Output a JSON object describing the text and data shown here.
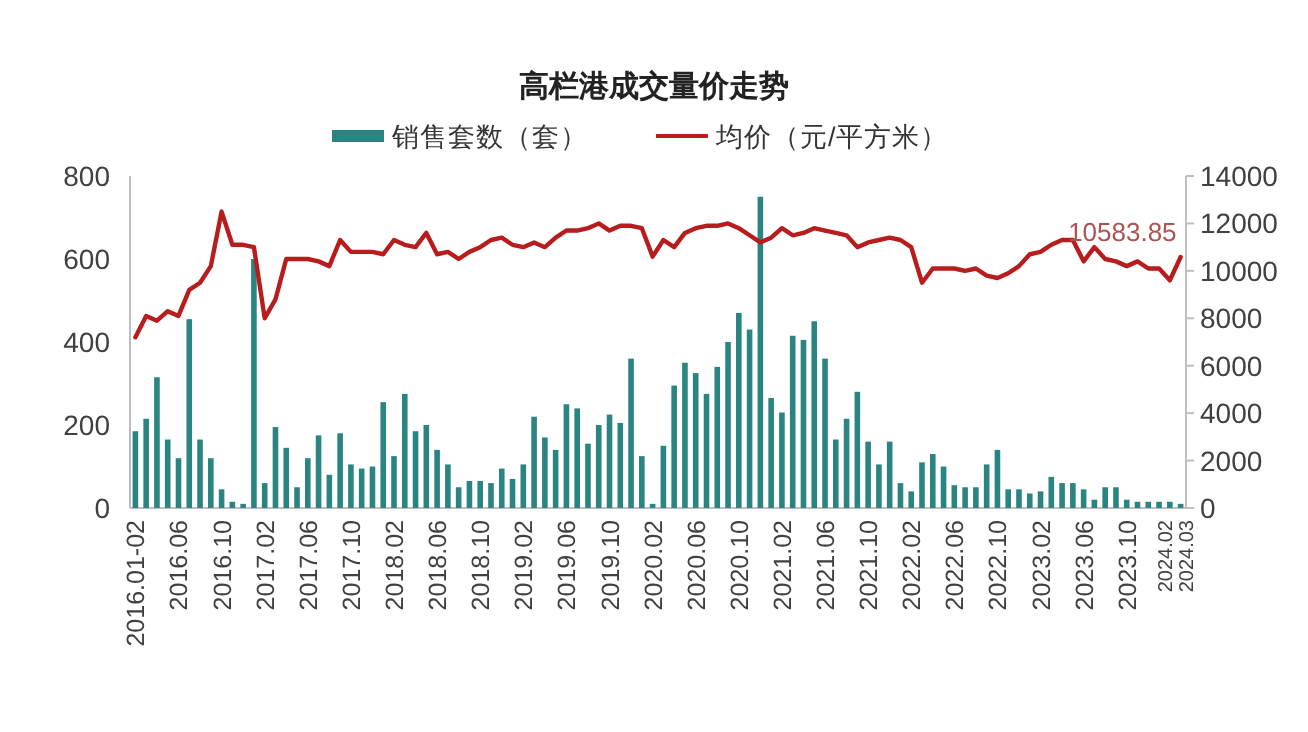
{
  "chart_data": {
    "type": "bar",
    "title": "高栏港成交量价走势",
    "categories": [
      "2016.01-02",
      null,
      null,
      null,
      "2016.06",
      null,
      null,
      null,
      "2016.10",
      null,
      null,
      null,
      "2017.02",
      null,
      null,
      null,
      "2017.06",
      null,
      null,
      null,
      "2017.10",
      null,
      null,
      null,
      "2018.02",
      null,
      null,
      null,
      "2018.06",
      null,
      null,
      null,
      "2018.10",
      null,
      null,
      null,
      "2019.02",
      null,
      null,
      null,
      "2019.06",
      null,
      null,
      null,
      "2019.10",
      null,
      null,
      null,
      "2020.02",
      null,
      null,
      null,
      "2020.06",
      null,
      null,
      null,
      "2020.10",
      null,
      null,
      null,
      "2021.02",
      null,
      null,
      null,
      "2021.06",
      null,
      null,
      null,
      "2021.10",
      null,
      null,
      null,
      "2022.02",
      null,
      null,
      null,
      "2022.06",
      null,
      null,
      null,
      "2022.10",
      null,
      null,
      null,
      "2023.02",
      null,
      null,
      null,
      "2023.06",
      null,
      null,
      null,
      "2023.10",
      null,
      null,
      null,
      "2024.02",
      "2024.03"
    ],
    "series": [
      {
        "name": "销售套数（套）",
        "color": "#2a8582",
        "values": [
          185,
          215,
          315,
          165,
          120,
          455,
          165,
          120,
          45,
          15,
          10,
          600,
          60,
          195,
          145,
          50,
          120,
          175,
          80,
          180,
          105,
          95,
          100,
          255,
          125,
          275,
          185,
          200,
          140,
          105,
          50,
          65,
          65,
          60,
          95,
          70,
          105,
          220,
          170,
          140,
          250,
          240,
          155,
          200,
          225,
          205,
          360,
          125,
          10,
          150,
          295,
          350,
          325,
          275,
          340,
          400,
          470,
          430,
          750,
          265,
          230,
          415,
          405,
          450,
          360,
          165,
          215,
          280,
          160,
          105,
          160,
          60,
          40,
          110,
          130,
          100,
          55,
          50,
          50,
          105,
          140,
          45,
          45,
          35,
          40,
          75,
          60,
          60,
          45,
          20,
          50,
          50,
          20,
          15,
          15,
          15,
          15,
          10
        ]
      },
      {
        "name": "均价（元/平方米）",
        "type": "line",
        "axis": "y2",
        "color": "#b81c1c",
        "values": [
          7200,
          8100,
          7900,
          8300,
          8100,
          9200,
          9500,
          10200,
          12500,
          11100,
          11100,
          11000,
          8000,
          8800,
          10500,
          10500,
          10500,
          10400,
          10200,
          11300,
          10800,
          10800,
          10800,
          10700,
          11300,
          11100,
          11000,
          11600,
          10700,
          10800,
          10500,
          10800,
          11000,
          11300,
          11400,
          11100,
          11000,
          11200,
          11000,
          11400,
          11700,
          11700,
          11800,
          12000,
          11700,
          11900,
          11900,
          11800,
          10600,
          11300,
          11000,
          11600,
          11800,
          11900,
          11900,
          12000,
          11800,
          11500,
          11200,
          11400,
          11800,
          11500,
          11600,
          11800,
          11700,
          11600,
          11500,
          11000,
          11200,
          11300,
          11400,
          11300,
          11000,
          9500,
          10100,
          10100,
          10100,
          10000,
          10100,
          9800,
          9700,
          9900,
          10200,
          10700,
          10800,
          11100,
          11300,
          11300,
          10400,
          11000,
          10500,
          10400,
          10200,
          10400,
          10100,
          10100,
          9600,
          10583.85
        ],
        "value_labels": [
          null,
          null,
          null,
          null,
          null,
          null,
          null,
          null,
          null,
          null,
          null,
          null,
          null,
          null,
          null,
          null,
          null,
          null,
          null,
          null,
          null,
          null,
          null,
          null,
          null,
          null,
          null,
          null,
          null,
          null,
          null,
          null,
          null,
          null,
          null,
          null,
          null,
          null,
          null,
          null,
          null,
          null,
          null,
          null,
          null,
          null,
          null,
          null,
          null,
          null,
          null,
          null,
          null,
          null,
          null,
          null,
          null,
          null,
          null,
          null,
          null,
          null,
          null,
          null,
          null,
          null,
          null,
          null,
          null,
          null,
          null,
          null,
          null,
          null,
          null,
          null,
          null,
          null,
          null,
          null,
          null,
          null,
          null,
          null,
          null,
          null,
          null,
          null,
          null,
          null,
          null,
          null,
          null,
          null,
          null,
          null,
          null,
          "10583.85"
        ]
      }
    ],
    "ylim": [
      0,
      800
    ],
    "yticks": [
      0,
      200,
      400,
      600,
      800
    ],
    "y2lim": [
      0,
      14000
    ],
    "y2ticks": [
      0,
      2000,
      4000,
      6000,
      8000,
      10000,
      12000,
      14000
    ],
    "legend": "top"
  }
}
